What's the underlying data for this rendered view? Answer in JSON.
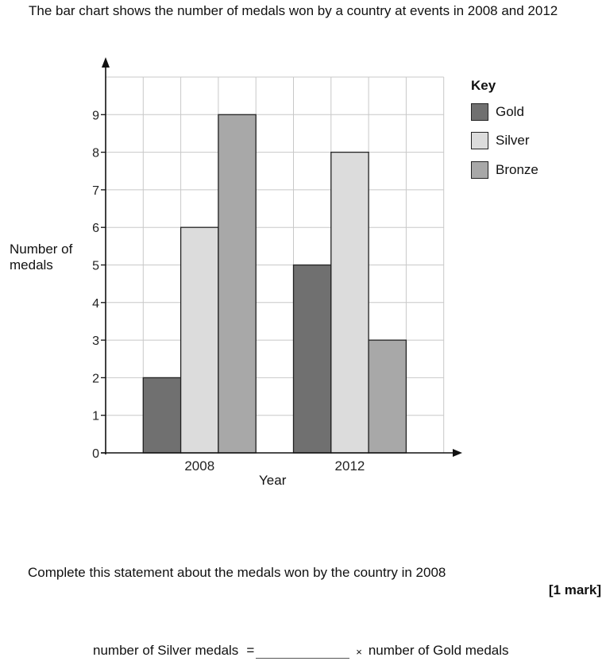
{
  "question": {
    "intro": "The bar chart shows the number of medals won by a country at events in 2008 and 2012",
    "instruction": "Complete this statement about the medals won by the country in 2008",
    "marks": "[1 mark]",
    "statement_left": "number of Silver medals",
    "equals": "=",
    "times": "×",
    "statement_right": "number of Gold medals",
    "answer_value": ""
  },
  "chart_data": {
    "type": "bar",
    "categories": [
      "2008",
      "2012"
    ],
    "series": [
      {
        "name": "Gold",
        "values": [
          2,
          5
        ],
        "color": "#707070"
      },
      {
        "name": "Silver",
        "values": [
          6,
          8
        ],
        "color": "#dcdcdc"
      },
      {
        "name": "Bronze",
        "values": [
          9,
          3
        ],
        "color": "#a8a8a8"
      }
    ],
    "xlabel": "Year",
    "ylabel": [
      "Number of",
      "medals"
    ],
    "ylim": [
      0,
      10
    ],
    "yticks": [
      0,
      1,
      2,
      3,
      4,
      5,
      6,
      7,
      8,
      9
    ],
    "grid": true,
    "legend_title": "Key",
    "legend_position": "right"
  }
}
